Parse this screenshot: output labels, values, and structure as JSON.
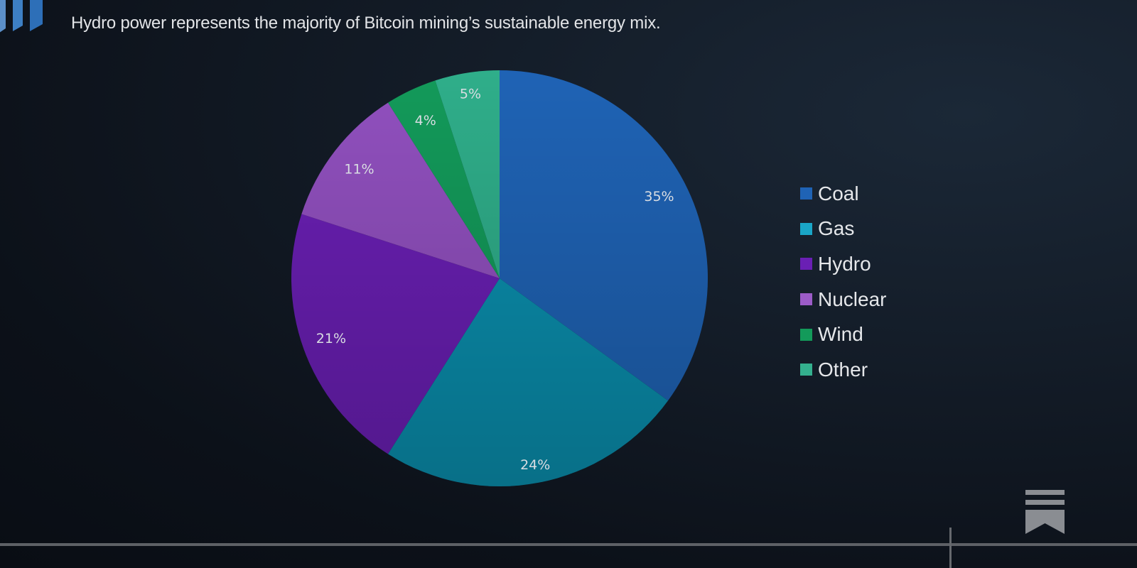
{
  "header": {
    "title_partial": "",
    "subtitle": "Hydro power represents the majority of Bitcoin mining’s sustainable energy mix."
  },
  "icons": {
    "logo": "bar-columns-logo-icon",
    "bookmark": "bookmark-icon"
  },
  "chart_data": {
    "type": "pie",
    "title": "",
    "subtitle": "Hydro power represents the majority of Bitcoin mining’s sustainable energy mix.",
    "categories": [
      "Coal",
      "Gas",
      "Hydro",
      "Nuclear",
      "Wind",
      "Other"
    ],
    "values": [
      35,
      24,
      21,
      11,
      4,
      5
    ],
    "labels": [
      "35%",
      "24%",
      "21%",
      "11%",
      "4%",
      "5%"
    ],
    "colors": [
      "#1f63b5",
      "#0a8fae",
      "#6a1fb4",
      "#9150bf",
      "#139a5a",
      "#2fae8a"
    ],
    "start_angle_deg": 0,
    "direction": "clockwise",
    "legend_position": "right",
    "unit": "%"
  },
  "legend": {
    "items": [
      {
        "label": "Coal",
        "color": "#1f63b5"
      },
      {
        "label": "Gas",
        "color": "#1aa6c7"
      },
      {
        "label": "Hydro",
        "color": "#6a1fb4"
      },
      {
        "label": "Nuclear",
        "color": "#9c5cc8"
      },
      {
        "label": "Wind",
        "color": "#139a5a"
      },
      {
        "label": "Other",
        "color": "#34b08e"
      }
    ]
  }
}
